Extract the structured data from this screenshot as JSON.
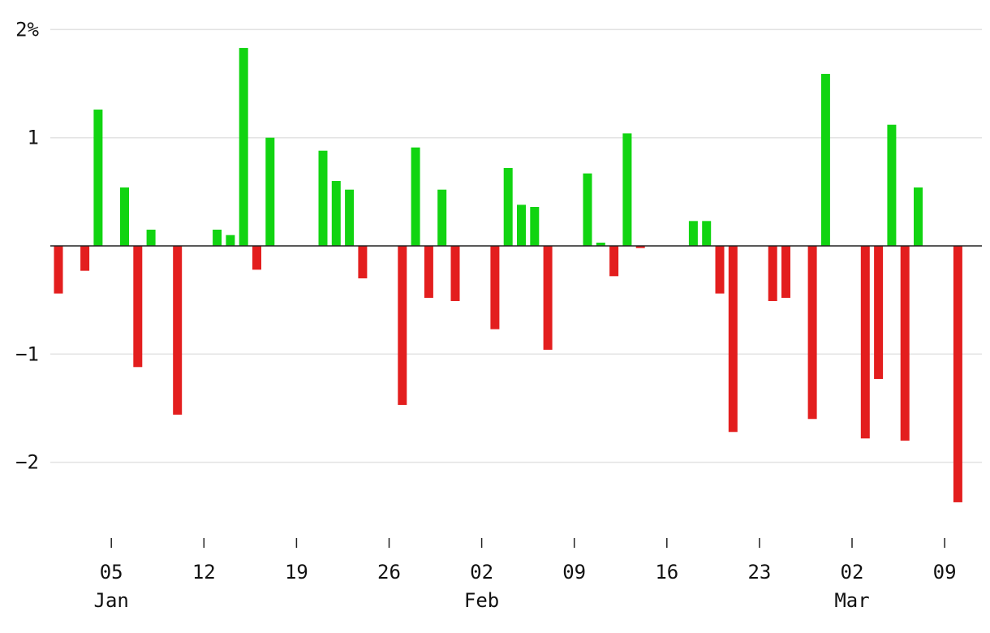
{
  "chart_data": {
    "type": "bar",
    "title": "",
    "xlabel": "",
    "ylabel": "",
    "y_unit": "%",
    "ylim": [
      -2.55,
      2.1
    ],
    "y_ticks": [
      {
        "value": 2,
        "label": "2%"
      },
      {
        "value": 1,
        "label": "1"
      },
      {
        "value": -1,
        "label": "−1"
      },
      {
        "value": -2,
        "label": "−2"
      }
    ],
    "grid": true,
    "x_range": [
      "2022-12-31",
      "2023-03-11"
    ],
    "x_ticks": [
      {
        "date": "2023-01-05",
        "label": "05",
        "month": "Jan"
      },
      {
        "date": "2023-01-12",
        "label": "12",
        "month": ""
      },
      {
        "date": "2023-01-19",
        "label": "19",
        "month": ""
      },
      {
        "date": "2023-01-26",
        "label": "26",
        "month": ""
      },
      {
        "date": "2023-02-02",
        "label": "02",
        "month": "Feb"
      },
      {
        "date": "2023-02-09",
        "label": "09",
        "month": ""
      },
      {
        "date": "2023-02-16",
        "label": "16",
        "month": ""
      },
      {
        "date": "2023-02-23",
        "label": "23",
        "month": ""
      },
      {
        "date": "2023-03-02",
        "label": "02",
        "month": "Mar"
      },
      {
        "date": "2023-03-09",
        "label": "09",
        "month": ""
      }
    ],
    "colors": {
      "positive": "#11d411",
      "negative": "#e31e1e"
    },
    "points": [
      {
        "date": "2023-01-01",
        "value": -0.44
      },
      {
        "date": "2023-01-03",
        "value": -0.23
      },
      {
        "date": "2023-01-04",
        "value": 1.26
      },
      {
        "date": "2023-01-06",
        "value": 0.54
      },
      {
        "date": "2023-01-07",
        "value": -1.12
      },
      {
        "date": "2023-01-08",
        "value": 0.15
      },
      {
        "date": "2023-01-10",
        "value": -1.56
      },
      {
        "date": "2023-01-13",
        "value": 0.15
      },
      {
        "date": "2023-01-14",
        "value": 0.1
      },
      {
        "date": "2023-01-15",
        "value": 1.83
      },
      {
        "date": "2023-01-16",
        "value": -0.22
      },
      {
        "date": "2023-01-17",
        "value": 1.0
      },
      {
        "date": "2023-01-21",
        "value": 0.88
      },
      {
        "date": "2023-01-22",
        "value": 0.6
      },
      {
        "date": "2023-01-23",
        "value": 0.52
      },
      {
        "date": "2023-01-24",
        "value": -0.3
      },
      {
        "date": "2023-01-27",
        "value": -1.47
      },
      {
        "date": "2023-01-28",
        "value": 0.91
      },
      {
        "date": "2023-01-29",
        "value": -0.48
      },
      {
        "date": "2023-01-30",
        "value": 0.52
      },
      {
        "date": "2023-01-31",
        "value": -0.51
      },
      {
        "date": "2023-02-03",
        "value": -0.77
      },
      {
        "date": "2023-02-04",
        "value": 0.72
      },
      {
        "date": "2023-02-05",
        "value": 0.38
      },
      {
        "date": "2023-02-06",
        "value": 0.36
      },
      {
        "date": "2023-02-07",
        "value": -0.96
      },
      {
        "date": "2023-02-10",
        "value": 0.67
      },
      {
        "date": "2023-02-11",
        "value": 0.03
      },
      {
        "date": "2023-02-12",
        "value": -0.28
      },
      {
        "date": "2023-02-13",
        "value": 1.04
      },
      {
        "date": "2023-02-14",
        "value": -0.02
      },
      {
        "date": "2023-02-18",
        "value": 0.23
      },
      {
        "date": "2023-02-19",
        "value": 0.23
      },
      {
        "date": "2023-02-20",
        "value": -0.44
      },
      {
        "date": "2023-02-21",
        "value": -1.72
      },
      {
        "date": "2023-02-24",
        "value": -0.51
      },
      {
        "date": "2023-02-25",
        "value": -0.48
      },
      {
        "date": "2023-02-27",
        "value": -1.6
      },
      {
        "date": "2023-02-28",
        "value": 1.59
      },
      {
        "date": "2023-03-03",
        "value": -1.78
      },
      {
        "date": "2023-03-04",
        "value": -1.23
      },
      {
        "date": "2023-03-05",
        "value": 1.12
      },
      {
        "date": "2023-03-06",
        "value": -1.8
      },
      {
        "date": "2023-03-07",
        "value": 0.54
      },
      {
        "date": "2023-03-10",
        "value": -2.37
      }
    ]
  }
}
